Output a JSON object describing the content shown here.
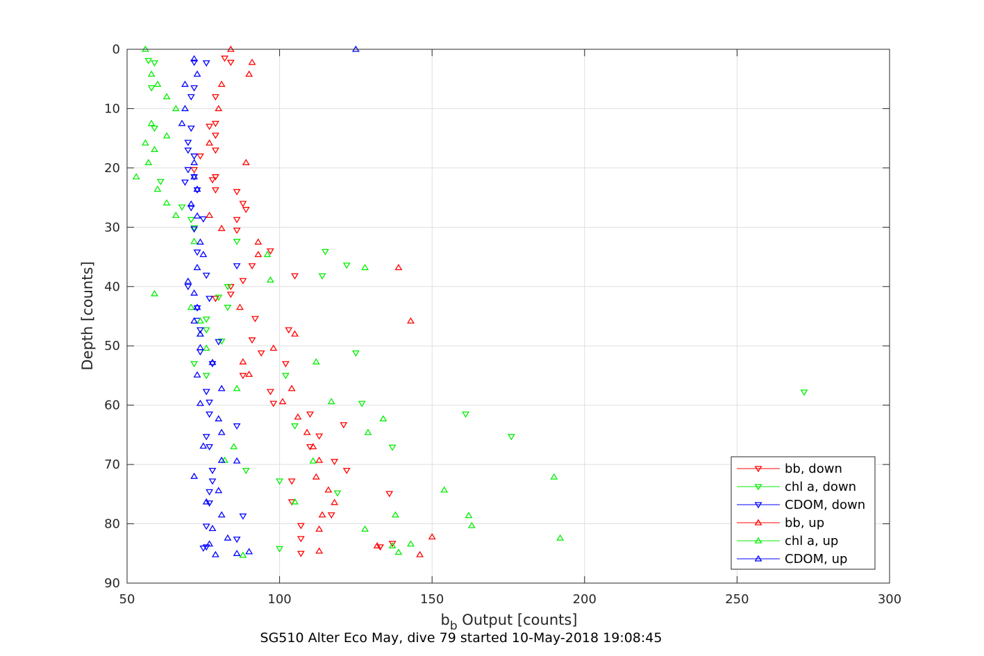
{
  "chart_data": {
    "type": "scatter",
    "title": "",
    "caption": "SG510 Alter Eco May, dive 79 started 10-May-2018 19:08:45",
    "xlabel": {
      "main": "b",
      "sub": "b",
      "rest": " Output [counts]"
    },
    "ylabel": "Depth [counts]",
    "xlim": [
      50,
      300
    ],
    "ylim": [
      0,
      90
    ],
    "y_reversed": true,
    "grid": true,
    "legend_position": "bottom-right",
    "xticks": [
      50,
      100,
      150,
      200,
      250,
      300
    ],
    "yticks": [
      0,
      10,
      20,
      30,
      40,
      50,
      60,
      70,
      80,
      90
    ],
    "series": [
      {
        "name": "bb, down",
        "color": "#ff0000",
        "marker": "triangle-down",
        "points": [
          [
            82,
            1.5
          ],
          [
            84,
            2.2
          ],
          [
            79,
            8
          ],
          [
            77,
            13
          ],
          [
            79,
            12.5
          ],
          [
            79,
            14.5
          ],
          [
            79,
            17
          ],
          [
            74,
            18
          ],
          [
            72,
            20.3
          ],
          [
            78,
            22
          ],
          [
            79,
            21.5
          ],
          [
            79,
            23.7
          ],
          [
            86,
            24
          ],
          [
            88,
            26
          ],
          [
            89,
            27
          ],
          [
            86,
            28.7
          ],
          [
            86,
            30.5
          ],
          [
            91,
            36.5
          ],
          [
            97,
            34
          ],
          [
            88,
            39
          ],
          [
            105,
            38.2
          ],
          [
            84,
            40
          ],
          [
            84,
            41.3
          ],
          [
            79,
            42
          ],
          [
            92,
            45.4
          ],
          [
            103,
            47.3
          ],
          [
            91,
            49
          ],
          [
            94,
            51.2
          ],
          [
            102,
            53
          ],
          [
            88,
            55
          ],
          [
            97,
            57.7
          ],
          [
            98,
            59.7
          ],
          [
            110,
            61.5
          ],
          [
            121,
            63.3
          ],
          [
            113,
            65.2
          ],
          [
            118,
            69.5
          ],
          [
            122,
            71
          ],
          [
            110,
            67
          ],
          [
            104,
            72.8
          ],
          [
            136,
            74.9
          ],
          [
            104,
            76.3
          ],
          [
            117,
            78.5
          ],
          [
            107,
            80.3
          ],
          [
            107,
            82.5
          ],
          [
            133,
            83.9
          ],
          [
            137,
            83.3
          ],
          [
            107,
            85
          ]
        ]
      },
      {
        "name": "chl a, down",
        "color": "#00ee00",
        "marker": "triangle-down",
        "points": [
          [
            57,
            1.9
          ],
          [
            59,
            2.3
          ],
          [
            58,
            6.5
          ],
          [
            59,
            13.3
          ],
          [
            61,
            22.3
          ],
          [
            68,
            26.6
          ],
          [
            71,
            28.7
          ],
          [
            72,
            30.1
          ],
          [
            86,
            32.4
          ],
          [
            115,
            34.1
          ],
          [
            122,
            36.4
          ],
          [
            114,
            38.2
          ],
          [
            83,
            40
          ],
          [
            80,
            41.8
          ],
          [
            83,
            43.5
          ],
          [
            76,
            45.5
          ],
          [
            76,
            47.3
          ],
          [
            81,
            49.2
          ],
          [
            125,
            51.2
          ],
          [
            102,
            55
          ],
          [
            76,
            55
          ],
          [
            72,
            53
          ],
          [
            127,
            59.7
          ],
          [
            105,
            63.5
          ],
          [
            161,
            61.5
          ],
          [
            137,
            67.1
          ],
          [
            176,
            65.3
          ],
          [
            89,
            71
          ],
          [
            100,
            72.8
          ],
          [
            119,
            74.8
          ],
          [
            100,
            84.2
          ],
          [
            272,
            57.8
          ]
        ]
      },
      {
        "name": "CDOM, down",
        "color": "#0000ff",
        "marker": "triangle-down",
        "points": [
          [
            72,
            2.2
          ],
          [
            76,
            2.3
          ],
          [
            72,
            6.5
          ],
          [
            71,
            8
          ],
          [
            71,
            13.3
          ],
          [
            70,
            15.7
          ],
          [
            70,
            17
          ],
          [
            72,
            18
          ],
          [
            70,
            20.3
          ],
          [
            72,
            21.5
          ],
          [
            69,
            22.4
          ],
          [
            73,
            23.7
          ],
          [
            71,
            26.7
          ],
          [
            75,
            28.6
          ],
          [
            72,
            30.3
          ],
          [
            73,
            34.2
          ],
          [
            86,
            36.5
          ],
          [
            76,
            38.1
          ],
          [
            70,
            40
          ],
          [
            77,
            42
          ],
          [
            73,
            43.6
          ],
          [
            73,
            45.7
          ],
          [
            74,
            47.3
          ],
          [
            80,
            49.3
          ],
          [
            74,
            51
          ],
          [
            78,
            53
          ],
          [
            76,
            57.7
          ],
          [
            77,
            59.5
          ],
          [
            77,
            61.5
          ],
          [
            86,
            63.5
          ],
          [
            76,
            65.3
          ],
          [
            77,
            67
          ],
          [
            78,
            71
          ],
          [
            78,
            72.8
          ],
          [
            77,
            74.6
          ],
          [
            77,
            76.5
          ],
          [
            88,
            78.7
          ],
          [
            76,
            80.4
          ],
          [
            86,
            82.6
          ],
          [
            75,
            84.1
          ],
          [
            76,
            83.9
          ]
        ]
      },
      {
        "name": "bb, up",
        "color": "#ff0000",
        "marker": "triangle-up",
        "points": [
          [
            84,
            0
          ],
          [
            91,
            2.2
          ],
          [
            90,
            4.2
          ],
          [
            81,
            5.9
          ],
          [
            80,
            10
          ],
          [
            77,
            15.8
          ],
          [
            89,
            19.1
          ],
          [
            77,
            28
          ],
          [
            81,
            30.2
          ],
          [
            93,
            32.5
          ],
          [
            93,
            34.6
          ],
          [
            139,
            36.8
          ],
          [
            87,
            43.5
          ],
          [
            143,
            45.8
          ],
          [
            105,
            48
          ],
          [
            98,
            50.4
          ],
          [
            88,
            52.7
          ],
          [
            90,
            54.8
          ],
          [
            104,
            57.2
          ],
          [
            101,
            59.4
          ],
          [
            106,
            62
          ],
          [
            109,
            64.6
          ],
          [
            111,
            67
          ],
          [
            113,
            69.3
          ],
          [
            112,
            72.1
          ],
          [
            116,
            74.3
          ],
          [
            118,
            76.4
          ],
          [
            114,
            78.5
          ],
          [
            113,
            80.9
          ],
          [
            150,
            82.2
          ],
          [
            132,
            83.7
          ],
          [
            113,
            84.6
          ],
          [
            146,
            85.2
          ]
        ]
      },
      {
        "name": "chl a, up",
        "color": "#00ee00",
        "marker": "triangle-up",
        "points": [
          [
            56,
            0
          ],
          [
            58,
            4.2
          ],
          [
            60,
            5.9
          ],
          [
            63,
            8
          ],
          [
            66,
            10
          ],
          [
            58,
            12.5
          ],
          [
            63,
            14.6
          ],
          [
            56,
            15.8
          ],
          [
            59,
            16.9
          ],
          [
            57,
            19.1
          ],
          [
            53,
            21.5
          ],
          [
            60,
            23.6
          ],
          [
            63,
            25.9
          ],
          [
            66,
            28
          ],
          [
            72,
            32.4
          ],
          [
            96,
            34.6
          ],
          [
            128,
            36.8
          ],
          [
            97,
            38.9
          ],
          [
            59,
            41.2
          ],
          [
            71,
            43.5
          ],
          [
            74,
            45.8
          ],
          [
            74,
            48
          ],
          [
            76,
            50.4
          ],
          [
            112,
            52.7
          ],
          [
            86,
            57.2
          ],
          [
            117,
            59.4
          ],
          [
            134,
            62.3
          ],
          [
            129,
            64.6
          ],
          [
            85,
            67
          ],
          [
            82,
            69.3
          ],
          [
            111,
            69.4
          ],
          [
            190,
            72.1
          ],
          [
            154,
            74.3
          ],
          [
            105,
            76.3
          ],
          [
            138,
            78.5
          ],
          [
            162,
            78.6
          ],
          [
            163,
            80.3
          ],
          [
            128,
            80.9
          ],
          [
            192,
            82.4
          ],
          [
            143,
            83.4
          ],
          [
            137,
            83.7
          ],
          [
            139,
            84.8
          ],
          [
            88,
            85.3
          ]
        ]
      },
      {
        "name": "CDOM, up",
        "color": "#0000ff",
        "marker": "triangle-up",
        "points": [
          [
            125,
            0
          ],
          [
            72,
            1.6
          ],
          [
            73,
            4.2
          ],
          [
            69,
            5.9
          ],
          [
            69,
            10
          ],
          [
            68,
            12.5
          ],
          [
            72,
            19.1
          ],
          [
            72,
            21.5
          ],
          [
            73,
            23.6
          ],
          [
            71,
            26.1
          ],
          [
            73,
            28.1
          ],
          [
            74,
            32.5
          ],
          [
            75,
            34.6
          ],
          [
            73,
            36.8
          ],
          [
            70,
            39.1
          ],
          [
            72,
            41.1
          ],
          [
            73,
            43.5
          ],
          [
            72,
            45.8
          ],
          [
            74,
            48
          ],
          [
            74,
            50.3
          ],
          [
            78,
            52.8
          ],
          [
            73,
            54.9
          ],
          [
            81,
            57.2
          ],
          [
            74,
            59.7
          ],
          [
            80,
            62.3
          ],
          [
            81,
            64.6
          ],
          [
            75,
            66.9
          ],
          [
            81,
            69.3
          ],
          [
            86,
            69.4
          ],
          [
            72,
            72
          ],
          [
            80,
            74.4
          ],
          [
            76,
            76.3
          ],
          [
            81,
            78.5
          ],
          [
            78,
            80.8
          ],
          [
            83,
            82.4
          ],
          [
            77,
            83.4
          ],
          [
            79,
            85.2
          ],
          [
            86,
            85
          ],
          [
            90,
            84.7
          ]
        ]
      }
    ]
  }
}
